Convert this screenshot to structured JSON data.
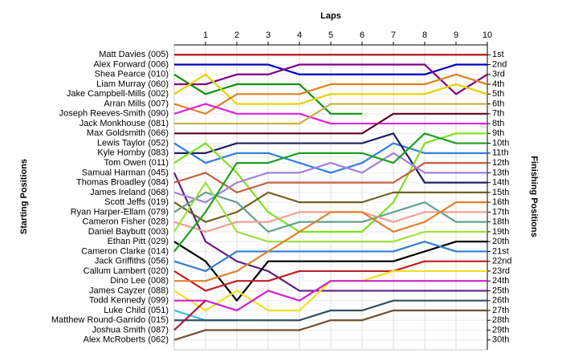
{
  "chart_data": {
    "type": "line",
    "x_label": "Laps",
    "y_label": "Starting Positions",
    "y2_label": "Finishing Positions",
    "x": [
      0,
      1,
      2,
      3,
      4,
      5,
      6,
      7,
      8,
      9,
      10
    ],
    "xlim": [
      0,
      10
    ],
    "xticks": [
      1,
      2,
      3,
      4,
      5,
      6,
      7,
      8,
      9,
      10
    ],
    "ylim": [
      31,
      0
    ],
    "grid": true,
    "yticks": [
      {
        "value": 1,
        "label": "1st"
      },
      {
        "value": 2,
        "label": "2nd"
      },
      {
        "value": 3,
        "label": "3rd"
      },
      {
        "value": 4,
        "label": "4th"
      },
      {
        "value": 5,
        "label": "5th"
      },
      {
        "value": 6,
        "label": "6th"
      },
      {
        "value": 7,
        "label": "7th"
      },
      {
        "value": 8,
        "label": "8th"
      },
      {
        "value": 9,
        "label": "9th"
      },
      {
        "value": 10,
        "label": "10th"
      },
      {
        "value": 11,
        "label": "11th"
      },
      {
        "value": 12,
        "label": "12th"
      },
      {
        "value": 13,
        "label": "13th"
      },
      {
        "value": 14,
        "label": "14th"
      },
      {
        "value": 15,
        "label": "15th"
      },
      {
        "value": 16,
        "label": "16th"
      },
      {
        "value": 17,
        "label": "17th"
      },
      {
        "value": 18,
        "label": "18th"
      },
      {
        "value": 19,
        "label": "19th"
      },
      {
        "value": 20,
        "label": "20th"
      },
      {
        "value": 21,
        "label": "21st"
      },
      {
        "value": 22,
        "label": "22nd"
      },
      {
        "value": 23,
        "label": "23rd"
      },
      {
        "value": 24,
        "label": "24th"
      },
      {
        "value": 25,
        "label": "25th"
      },
      {
        "value": 26,
        "label": "26th"
      },
      {
        "value": 27,
        "label": "27th"
      },
      {
        "value": 28,
        "label": "28th"
      },
      {
        "value": 29,
        "label": "29th"
      },
      {
        "value": 30,
        "label": "30th"
      }
    ],
    "series": [
      {
        "name": "Matt Davies (005)",
        "color": "#b01818",
        "values": [
          1,
          1,
          1,
          1,
          1,
          1,
          1,
          1,
          1,
          1,
          1
        ]
      },
      {
        "name": "Alex Forward (006)",
        "color": "#0000c0",
        "values": [
          2,
          2,
          2,
          2,
          3,
          3,
          3,
          3,
          3,
          2,
          2
        ]
      },
      {
        "name": "Shea Pearce (010)",
        "color": "#109010",
        "values": [
          3,
          5,
          4,
          4,
          4,
          7,
          7,
          null,
          null,
          null,
          null
        ]
      },
      {
        "name": "Liam Murray (060)",
        "color": "#800080",
        "values": [
          4,
          4,
          3,
          3,
          2,
          2,
          2,
          2,
          2,
          5,
          3
        ]
      },
      {
        "name": "Jake Campbell-Mills (002)",
        "color": "#e6d200",
        "values": [
          5,
          3,
          6,
          6,
          6,
          5,
          5,
          5,
          5,
          4,
          5
        ]
      },
      {
        "name": "Arran Mills (007)",
        "color": "#e08020",
        "values": [
          6,
          7,
          5,
          5,
          5,
          4,
          4,
          4,
          4,
          3,
          4
        ]
      },
      {
        "name": "Joseph Reeves-Smith (090)",
        "color": "#e020e0",
        "values": [
          7,
          6,
          7,
          7,
          7,
          8,
          8,
          8,
          8,
          8,
          8
        ]
      },
      {
        "name": "Jack Monkhouse (081)",
        "color": "#c8b040",
        "values": [
          8,
          8,
          8,
          8,
          8,
          6,
          6,
          6,
          6,
          6,
          6
        ]
      },
      {
        "name": "Max Goldsmith (066)",
        "color": "#600020",
        "values": [
          9,
          9,
          9,
          9,
          9,
          9,
          9,
          7,
          7,
          7,
          7
        ]
      },
      {
        "name": "Lewis Taylor (052)",
        "color": "#3080e0",
        "values": [
          10,
          12,
          11,
          11,
          12,
          13,
          12,
          10,
          11,
          11,
          11
        ]
      },
      {
        "name": "Kyle Hornby (083)",
        "color": "#202060",
        "values": [
          11,
          11,
          10,
          10,
          10,
          10,
          10,
          9,
          14,
          14,
          14
        ]
      },
      {
        "name": "Tom Owen (011)",
        "color": "#80e020",
        "values": [
          12,
          10,
          13,
          17,
          19,
          19,
          19,
          16,
          10,
          9,
          9
        ]
      },
      {
        "name": "Samual Harman (045)",
        "color": "#602080",
        "values": [
          13,
          20,
          22,
          23,
          25,
          25,
          25,
          25,
          25,
          25,
          25
        ]
      },
      {
        "name": "Thomas Broadley (084)",
        "color": "#c06040",
        "values": [
          14,
          13,
          15,
          14,
          14,
          14,
          14,
          14,
          12,
          12,
          12
        ]
      },
      {
        "name": "James Ireland (068)",
        "color": "#a080e0",
        "values": [
          15,
          16,
          14,
          13,
          13,
          12,
          13,
          11,
          13,
          13,
          13
        ]
      },
      {
        "name": "Scott Jeffs (019)",
        "color": "#706020",
        "values": [
          16,
          18,
          17,
          15,
          16,
          16,
          16,
          15,
          15,
          15,
          15
        ]
      },
      {
        "name": "Ryan Harper-Ellam (079)",
        "color": "#60a090",
        "values": [
          17,
          15,
          16,
          19,
          18,
          18,
          18,
          17,
          16,
          18,
          18
        ]
      },
      {
        "name": "Cameron Fisher (028)",
        "color": "#f0a090",
        "values": [
          18,
          19,
          18,
          18,
          17,
          17,
          17,
          18,
          17,
          17,
          17
        ]
      },
      {
        "name": "Daniel Baybutt (003)",
        "color": "#a0e040",
        "values": [
          19,
          14,
          19,
          20,
          20,
          20,
          20,
          20,
          19,
          19,
          19
        ]
      },
      {
        "name": "Ethan Pitt (029)",
        "color": "#000000",
        "values": [
          20,
          22,
          26,
          22,
          22,
          22,
          22,
          22,
          21,
          20,
          20
        ]
      },
      {
        "name": "Cameron Clarke (014)",
        "color": "#20a020",
        "values": [
          21,
          17,
          12,
          12,
          11,
          11,
          11,
          12,
          9,
          10,
          10
        ]
      },
      {
        "name": "Jack Griffiths (056)",
        "color": "#3080d0",
        "values": [
          22,
          23,
          21,
          21,
          21,
          21,
          21,
          21,
          20,
          21,
          21
        ]
      },
      {
        "name": "Callum Lambert (020)",
        "color": "#c02020",
        "values": [
          23,
          25,
          24,
          24,
          23,
          23,
          23,
          23,
          22,
          22,
          22
        ]
      },
      {
        "name": "Dino Lee (008)",
        "color": "#e08030",
        "values": [
          24,
          24,
          23,
          21,
          19,
          17,
          17,
          19,
          18,
          16,
          16
        ]
      },
      {
        "name": "James Cayzer (088)",
        "color": "#f0e020",
        "values": [
          25,
          27,
          25,
          27,
          27,
          24,
          24,
          23,
          23,
          23,
          23
        ]
      },
      {
        "name": "Todd Kennedy (099)",
        "color": "#d020d0",
        "values": [
          26,
          26,
          27,
          25,
          26,
          24,
          24,
          24,
          24,
          24,
          24
        ]
      },
      {
        "name": "Luke Child (051)",
        "color": "#40c0e0",
        "values": [
          27,
          28,
          28,
          null,
          null,
          null,
          null,
          null,
          null,
          null,
          null
        ]
      },
      {
        "name": "Matthew Round-Garrido (015)",
        "color": "#305060",
        "values": [
          28,
          28,
          28,
          28,
          28,
          27,
          27,
          26,
          26,
          26,
          26
        ]
      },
      {
        "name": "Joshua Smith (087)",
        "color": "#a02040",
        "values": [
          29,
          26,
          null,
          null,
          null,
          null,
          null,
          null,
          null,
          null,
          null
        ]
      },
      {
        "name": "Alex McRoberts (062)",
        "color": "#705030",
        "values": [
          30,
          29,
          29,
          29,
          29,
          28,
          28,
          27,
          27,
          27,
          27
        ]
      }
    ]
  }
}
